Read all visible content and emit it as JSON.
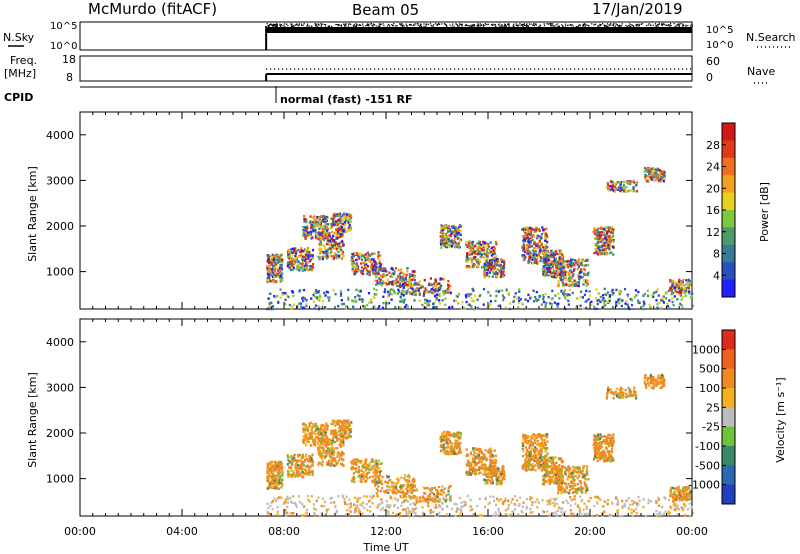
{
  "header": {
    "station": "McMurdo (fitACF)",
    "beam": "Beam 05",
    "date": "17/Jan/2019"
  },
  "panels": {
    "nsky_label": "N.Sky",
    "nsearch_label": "N.Search",
    "freq_label_line1": "Freq.",
    "freq_label_line2": "[MHz]",
    "nave_label": "Nave",
    "cpid_label": "CPID",
    "cpid_text": "normal (fast) -151 RF",
    "noise_ticks": [
      "10^5",
      "10^0"
    ],
    "noise_right_ticks": [
      "10^5",
      "10^0"
    ],
    "freq_ticks": [
      "18",
      "8"
    ],
    "nave_ticks": [
      "60",
      "0"
    ]
  },
  "chart_data": [
    {
      "type": "heatmap",
      "title": "",
      "xlabel": "",
      "ylabel": "Slant Range [km]",
      "colorbar_label": "Power [dB]",
      "x_ticks": [
        "00:00",
        "04:00",
        "08:00",
        "12:00",
        "16:00",
        "20:00",
        "00:00"
      ],
      "y_ticks": [
        1000,
        2000,
        3000,
        4000
      ],
      "ylim": [
        180,
        4500
      ],
      "xlim_hours": [
        0,
        24
      ],
      "colorbar_ticks": [
        4,
        8,
        12,
        16,
        20,
        24,
        28
      ],
      "colorbar_range": [
        0,
        32
      ],
      "colorbar_colors": [
        "#1f1fff",
        "#2a4fbe",
        "#3a7a96",
        "#4f9a6a",
        "#7cc93e",
        "#e6d020",
        "#f3a020",
        "#f07020",
        "#e03a1c",
        "#d01818"
      ],
      "data_start_hours": 7.3
    },
    {
      "type": "heatmap",
      "title": "",
      "xlabel": "Time UT",
      "ylabel": "Slant Range [km]",
      "colorbar_label": "Velocity [m s⁻¹]",
      "x_ticks": [
        "00:00",
        "04:00",
        "08:00",
        "12:00",
        "16:00",
        "20:00",
        "00:00"
      ],
      "y_ticks": [
        1000,
        2000,
        3000,
        4000
      ],
      "ylim": [
        180,
        4500
      ],
      "xlim_hours": [
        0,
        24
      ],
      "colorbar_ticks": [
        "1000",
        "500",
        "100",
        "25",
        "-25",
        "-100",
        "-500",
        "-1000"
      ],
      "colorbar_colors": [
        "#2040c0",
        "#2a6ab0",
        "#3a8a6a",
        "#6cc43a",
        "#bdbdbd",
        "#f3b020",
        "#f08a20",
        "#f06020",
        "#e02a1a"
      ],
      "data_start_hours": 7.3
    }
  ]
}
